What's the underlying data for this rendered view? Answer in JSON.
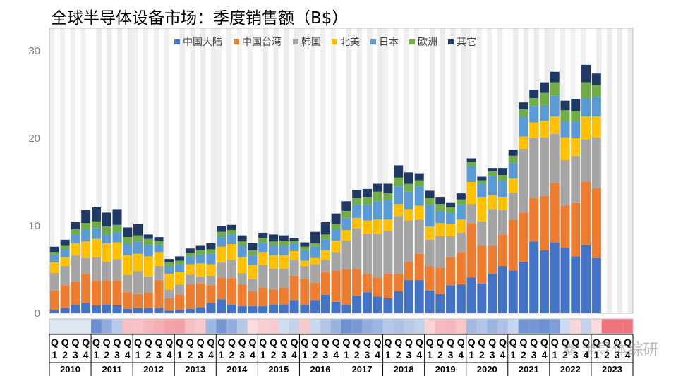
{
  "chart_data": {
    "type": "bar",
    "stacked": true,
    "title": "全球半导体设备市场：季度销售额（B$）",
    "ylim": [
      0,
      30
    ],
    "yticks": [
      0,
      10,
      20,
      30
    ],
    "legend_position": "top",
    "grid": false,
    "quarter_labels": [
      "Q1",
      "Q2",
      "Q3",
      "Q4"
    ],
    "years": [
      "2010",
      "2011",
      "2012",
      "2013",
      "2014",
      "2015",
      "2016",
      "2017",
      "2018",
      "2019",
      "2020",
      "2021",
      "2022",
      "2023"
    ],
    "series": [
      {
        "name": "中国大陆",
        "color": "#4472C4",
        "values": [
          0.4,
          0.6,
          1.0,
          1.2,
          0.9,
          1.0,
          0.9,
          0.5,
          0.6,
          0.6,
          0.6,
          0.3,
          0.4,
          0.5,
          0.7,
          1.2,
          1.6,
          1.0,
          0.8,
          0.8,
          0.8,
          1.0,
          1.0,
          1.5,
          1.0,
          1.5,
          2.1,
          1.3,
          1.0,
          2.0,
          2.4,
          1.9,
          1.7,
          2.5,
          3.8,
          3.8,
          2.6,
          2.2,
          3.2,
          3.3,
          4.1,
          3.4,
          4.5,
          5.4,
          4.9,
          5.9,
          8.2,
          7.2,
          8.1,
          7.5,
          6.5,
          7.8,
          6.3,
          0,
          0,
          0,
          0
        ]
      },
      {
        "name": "中国台湾",
        "color": "#ED7D31",
        "values": [
          2.2,
          2.6,
          2.6,
          3.3,
          2.8,
          2.7,
          2.8,
          1.9,
          1.6,
          1.7,
          3.2,
          1.4,
          1.7,
          2.8,
          2.7,
          2.0,
          2.5,
          3.0,
          2.5,
          1.7,
          2.1,
          1.7,
          1.9,
          2.8,
          2.9,
          2.0,
          2.6,
          3.6,
          4.0,
          3.0,
          2.1,
          2.2,
          2.8,
          2.0,
          2.1,
          3.0,
          2.8,
          3.0,
          3.2,
          3.7,
          6.2,
          4.3,
          3.2,
          3.6,
          5.8,
          5.6,
          5.0,
          6.2,
          6.8,
          4.8,
          6.1,
          7.2,
          8.0,
          0,
          0,
          0,
          0
        ]
      },
      {
        "name": "韩国",
        "color": "#A5A5A5",
        "values": [
          2.0,
          2.2,
          3.0,
          1.8,
          2.7,
          2.2,
          2.5,
          2.0,
          2.6,
          1.9,
          1.6,
          1.0,
          1.2,
          1.1,
          0.8,
          1.1,
          1.7,
          2.1,
          1.3,
          1.4,
          2.6,
          2.4,
          2.2,
          1.8,
          1.5,
          2.1,
          1.4,
          2.1,
          3.3,
          4.7,
          4.6,
          5.0,
          4.9,
          6.6,
          4.7,
          3.9,
          3.0,
          3.6,
          2.4,
          2.2,
          2.2,
          2.8,
          4.2,
          2.8,
          3.1,
          7.3,
          6.8,
          6.7,
          5.6,
          5.2,
          5.4,
          4.9,
          5.8,
          0,
          0,
          0,
          0
        ]
      },
      {
        "name": "北美",
        "color": "#FFC000",
        "values": [
          1.2,
          1.0,
          1.4,
          1.9,
          2.1,
          2.1,
          1.9,
          2.2,
          2.0,
          2.3,
          1.6,
          1.8,
          1.4,
          1.2,
          1.5,
          1.3,
          1.8,
          1.8,
          1.8,
          1.6,
          1.5,
          1.5,
          1.5,
          1.0,
          0.6,
          0.7,
          1.1,
          1.3,
          1.2,
          1.2,
          1.5,
          1.6,
          1.3,
          1.4,
          1.3,
          1.6,
          1.5,
          1.5,
          1.4,
          1.5,
          2.5,
          2.8,
          1.6,
          1.5,
          1.6,
          1.4,
          1.8,
          1.9,
          2.0,
          2.6,
          2.0,
          2.6,
          2.4,
          0,
          0,
          0,
          0
        ]
      },
      {
        "name": "日本",
        "color": "#5B9BD5",
        "values": [
          0.9,
          0.9,
          1.0,
          1.4,
          1.2,
          1.0,
          1.1,
          1.4,
          1.4,
          1.3,
          0.8,
          0.9,
          0.9,
          0.9,
          1.0,
          1.2,
          1.1,
          1.1,
          1.3,
          1.1,
          1.1,
          1.1,
          1.1,
          0.9,
          1.2,
          1.3,
          1.2,
          1.3,
          1.4,
          1.5,
          1.8,
          2.1,
          2.2,
          2.0,
          2.0,
          2.2,
          2.5,
          1.4,
          1.3,
          1.7,
          1.8,
          1.5,
          2.2,
          1.9,
          1.8,
          2.3,
          1.9,
          1.8,
          2.4,
          1.8,
          1.9,
          2.1,
          2.2,
          0,
          0,
          0,
          0
        ]
      },
      {
        "name": "欧洲",
        "color": "#70AD47",
        "values": [
          0.3,
          0.4,
          0.6,
          0.7,
          0.8,
          0.9,
          0.9,
          0.7,
          0.7,
          0.7,
          0.5,
          0.4,
          0.4,
          0.4,
          0.5,
          0.5,
          0.6,
          0.5,
          0.5,
          0.6,
          0.5,
          0.5,
          0.6,
          0.3,
          0.4,
          0.4,
          0.6,
          0.6,
          0.8,
          0.8,
          0.9,
          1.1,
          0.8,
          1.0,
          0.9,
          0.7,
          0.8,
          0.8,
          0.6,
          0.6,
          0.5,
          0.4,
          0.5,
          0.6,
          0.8,
          0.8,
          0.9,
          1.4,
          1.5,
          1.3,
          1.2,
          1.8,
          1.4,
          0,
          0,
          0,
          0
        ]
      },
      {
        "name": "其它",
        "color": "#203864",
        "values": [
          0.6,
          0.7,
          0.8,
          1.5,
          1.6,
          1.6,
          1.8,
          1.1,
          1.3,
          0.5,
          0.4,
          0.4,
          0.5,
          0.5,
          0.5,
          0.7,
          0.7,
          0.6,
          0.7,
          0.8,
          0.6,
          0.8,
          0.6,
          0.3,
          0.5,
          1.3,
          1.4,
          1.2,
          1.1,
          0.9,
          0.9,
          0.9,
          1.1,
          1.4,
          1.3,
          0.8,
          0.8,
          0.8,
          0.5,
          0.7,
          0.4,
          0.4,
          0.4,
          0.8,
          0.7,
          0.8,
          0.9,
          1.2,
          1.2,
          1.1,
          1.4,
          2.0,
          1.3,
          0,
          0,
          0,
          0
        ]
      }
    ]
  },
  "watermark": "半导体综研"
}
